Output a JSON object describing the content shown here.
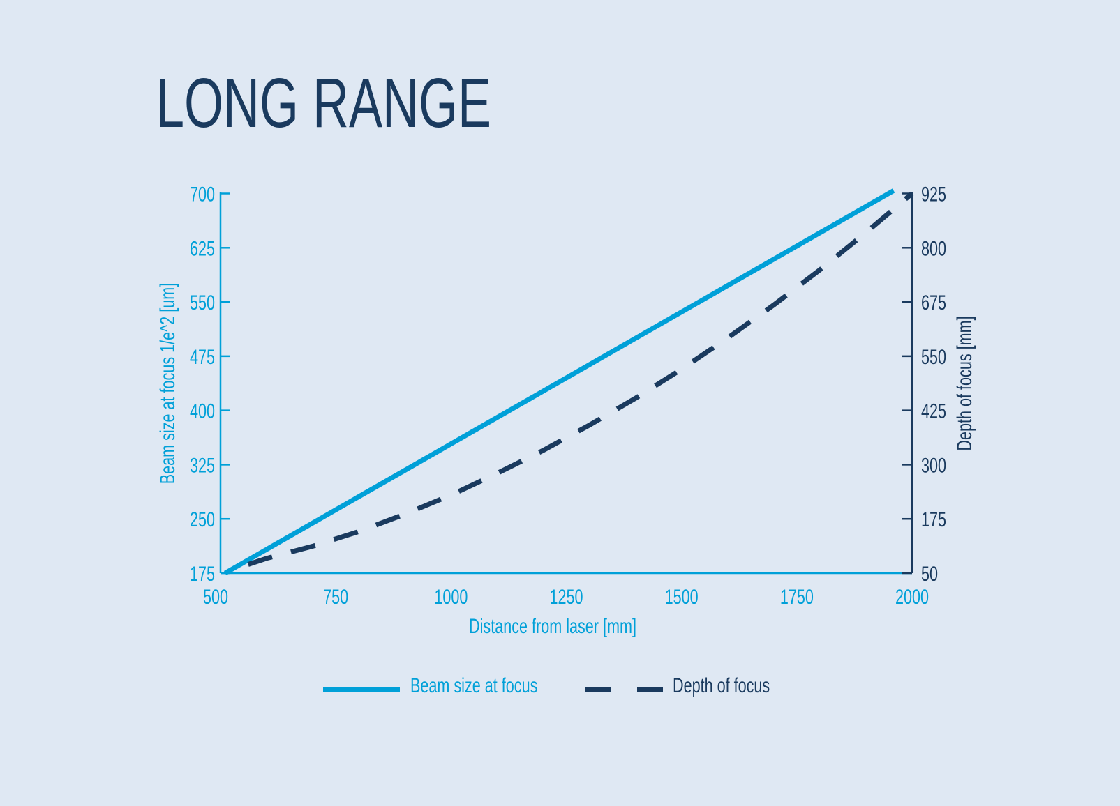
{
  "chart_data": {
    "type": "line",
    "title": "LONG RANGE",
    "xlabel": "Distance from laser [mm]",
    "ylabel_left": "Beam size at focus 1/e^2 [um]",
    "ylabel_right": "Depth of focus [mm]",
    "xlim": [
      500,
      2000
    ],
    "ylim_left": [
      175,
      700
    ],
    "ylim_right": [
      50,
      925
    ],
    "x_ticks": [
      "500",
      "750",
      "1000",
      "1250",
      "1500",
      "1750",
      "2000"
    ],
    "y_left_ticks": [
      "175",
      "250",
      "325",
      "400",
      "475",
      "550",
      "625",
      "700"
    ],
    "y_right_ticks": [
      "50",
      "175",
      "300",
      "425",
      "550",
      "675",
      "800",
      "925"
    ],
    "grid": false,
    "legend_placement": "bottom-center",
    "series": [
      {
        "name": "Beam size at focus",
        "axis": "left",
        "style": "solid",
        "color": "#00a0d8",
        "x": [
          510,
          1960
        ],
        "y": [
          175,
          704
        ]
      },
      {
        "name": "Depth of focus",
        "axis": "right",
        "style": "dashed",
        "color": "#1a3a5e",
        "x": [
          560,
          600,
          700,
          800,
          900,
          1000,
          1100,
          1200,
          1300,
          1400,
          1500,
          1600,
          1700,
          1800,
          1900,
          2000
        ],
        "y": [
          70,
          84,
          112,
          146,
          186,
          230,
          280,
          333,
          391,
          453,
          520,
          592,
          668,
          749,
          835,
          925
        ]
      }
    ]
  },
  "colors": {
    "background": "#dfe8f3",
    "accent": "#00a0d8",
    "navy": "#1a3a5e"
  }
}
